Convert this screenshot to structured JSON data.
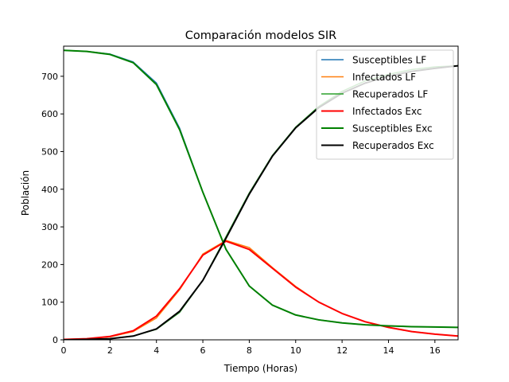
{
  "chart_data": {
    "type": "line",
    "title": "Comparación modelos SIR",
    "xlabel": "Tiempo (Horas)",
    "ylabel": "Población",
    "xlim": [
      0,
      17
    ],
    "ylim": [
      0,
      780
    ],
    "xticks": [
      0,
      2,
      4,
      6,
      8,
      10,
      12,
      14,
      16
    ],
    "yticks": [
      0,
      100,
      200,
      300,
      400,
      500,
      600,
      700
    ],
    "grid": false,
    "legend_position": "top-right",
    "series": [
      {
        "name": "Susceptibles LF",
        "color": "#1f77b4",
        "width": 1.5,
        "x": [
          0,
          1,
          2,
          3,
          4,
          5,
          6,
          7,
          8,
          9,
          10,
          11,
          12,
          13,
          14,
          15,
          16,
          17
        ],
        "values": [
          769,
          766,
          759,
          738,
          682,
          562,
          392,
          240,
          143,
          92,
          66,
          53,
          45,
          40,
          37,
          35,
          34,
          33
        ]
      },
      {
        "name": "Infectados LF",
        "color": "#ff7f0e",
        "width": 1.5,
        "x": [
          0,
          1,
          2,
          3,
          4,
          5,
          6,
          7,
          8,
          9,
          10,
          11,
          12,
          13,
          14,
          15,
          16,
          17
        ],
        "values": [
          1,
          3,
          8,
          22,
          58,
          133,
          228,
          264,
          245,
          192,
          142,
          100,
          70,
          48,
          33,
          22,
          15,
          10
        ]
      },
      {
        "name": "Recuperados LF",
        "color": "#2ca02c",
        "width": 1.5,
        "x": [
          0,
          1,
          2,
          3,
          4,
          5,
          6,
          7,
          8,
          9,
          10,
          11,
          12,
          13,
          14,
          15,
          16,
          17
        ],
        "values": [
          0,
          1,
          3,
          10,
          28,
          73,
          158,
          274,
          390,
          490,
          565,
          620,
          660,
          688,
          705,
          718,
          725,
          728
        ]
      },
      {
        "name": "Infectados Exc",
        "color": "#ff0000",
        "width": 2,
        "x": [
          0,
          1,
          2,
          3,
          4,
          5,
          6,
          7,
          8,
          9,
          10,
          11,
          12,
          13,
          14,
          15,
          16,
          17
        ],
        "values": [
          1,
          3,
          9,
          24,
          63,
          136,
          225,
          262,
          240,
          190,
          140,
          100,
          70,
          48,
          33,
          22,
          15,
          10
        ]
      },
      {
        "name": "Susceptibles Exc",
        "color": "#008000",
        "width": 2,
        "x": [
          0,
          1,
          2,
          3,
          4,
          5,
          6,
          7,
          8,
          9,
          10,
          11,
          12,
          13,
          14,
          15,
          16,
          17
        ],
        "values": [
          769,
          766,
          758,
          736,
          678,
          558,
          392,
          240,
          143,
          92,
          66,
          53,
          45,
          40,
          37,
          35,
          34,
          33
        ]
      },
      {
        "name": "Recuperados Exc",
        "color": "#000000",
        "width": 2,
        "x": [
          0,
          1,
          2,
          3,
          4,
          5,
          6,
          7,
          8,
          9,
          10,
          11,
          12,
          13,
          14,
          15,
          16,
          17
        ],
        "values": [
          0,
          1,
          3,
          10,
          29,
          76,
          158,
          270,
          387,
          488,
          563,
          617,
          655,
          682,
          700,
          713,
          721,
          728
        ]
      }
    ]
  }
}
